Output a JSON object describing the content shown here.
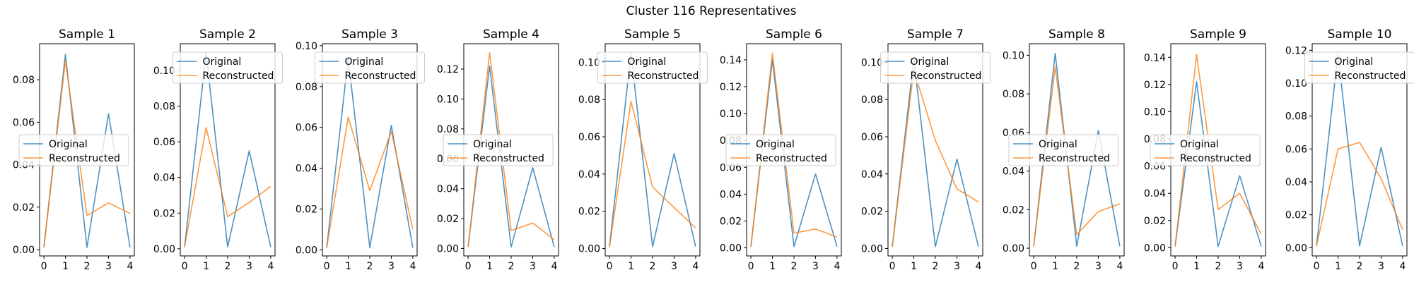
{
  "figure_title": "Cluster 116 Representatives",
  "colors": {
    "original": "#1f77b4",
    "reconstructed": "#ff7f0e"
  },
  "chart_data": [
    {
      "type": "line",
      "title": "Sample 1",
      "x": [
        0,
        1,
        2,
        3,
        4
      ],
      "series": [
        {
          "name": "Original",
          "values": [
            0.001,
            0.092,
            0.001,
            0.064,
            0.001
          ]
        },
        {
          "name": "Reconstructed",
          "values": [
            0.001,
            0.089,
            0.016,
            0.022,
            0.017
          ]
        }
      ],
      "ylim": [
        -0.003,
        0.097
      ],
      "yticks": [
        0.0,
        0.02,
        0.04,
        0.06,
        0.08
      ],
      "yticklabels": [
        "0.00",
        "0.02",
        "0.04",
        "0.06",
        "0.08"
      ],
      "xticks": [
        0,
        1,
        2,
        3,
        4
      ],
      "legend": "center-left"
    },
    {
      "type": "line",
      "title": "Sample 2",
      "x": [
        0,
        1,
        2,
        3,
        4
      ],
      "series": [
        {
          "name": "Original",
          "values": [
            0.001,
            0.11,
            0.001,
            0.055,
            0.001
          ]
        },
        {
          "name": "Reconstructed",
          "values": [
            0.001,
            0.068,
            0.018,
            0.026,
            0.035
          ]
        }
      ],
      "ylim": [
        -0.004,
        0.115
      ],
      "yticks": [
        0.0,
        0.02,
        0.04,
        0.06,
        0.08,
        0.1
      ],
      "yticklabels": [
        "0.00",
        "0.02",
        "0.04",
        "0.06",
        "0.08",
        "0.10"
      ],
      "xticks": [
        0,
        1,
        2,
        3,
        4
      ],
      "legend": "top"
    },
    {
      "type": "line",
      "title": "Sample 3",
      "x": [
        0,
        1,
        2,
        3,
        4
      ],
      "series": [
        {
          "name": "Original",
          "values": [
            0.001,
            0.094,
            0.001,
            0.061,
            0.001
          ]
        },
        {
          "name": "Reconstructed",
          "values": [
            0.001,
            0.065,
            0.029,
            0.058,
            0.01
          ]
        }
      ],
      "ylim": [
        -0.003,
        0.101
      ],
      "yticks": [
        0.0,
        0.02,
        0.04,
        0.06,
        0.08,
        0.1
      ],
      "yticklabels": [
        "0.00",
        "0.02",
        "0.04",
        "0.06",
        "0.08",
        "0.10"
      ],
      "xticks": [
        0,
        1,
        2,
        3,
        4
      ],
      "legend": "top"
    },
    {
      "type": "line",
      "title": "Sample 4",
      "x": [
        0,
        1,
        2,
        3,
        4
      ],
      "series": [
        {
          "name": "Original",
          "values": [
            0.001,
            0.122,
            0.001,
            0.054,
            0.001
          ]
        },
        {
          "name": "Reconstructed",
          "values": [
            0.001,
            0.131,
            0.012,
            0.017,
            0.006
          ]
        }
      ],
      "ylim": [
        -0.005,
        0.137
      ],
      "yticks": [
        0.0,
        0.02,
        0.04,
        0.06,
        0.08,
        0.1,
        0.12
      ],
      "yticklabels": [
        "0.00",
        "0.02",
        "0.04",
        "0.06",
        "0.08",
        "0.10",
        "0.12"
      ],
      "xticks": [
        0,
        1,
        2,
        3,
        4
      ],
      "legend": "center-left"
    },
    {
      "type": "line",
      "title": "Sample 5",
      "x": [
        0,
        1,
        2,
        3,
        4
      ],
      "series": [
        {
          "name": "Original",
          "values": [
            0.001,
            0.105,
            0.001,
            0.051,
            0.001
          ]
        },
        {
          "name": "Reconstructed",
          "values": [
            0.001,
            0.079,
            0.033,
            0.022,
            0.011
          ]
        }
      ],
      "ylim": [
        -0.004,
        0.11
      ],
      "yticks": [
        0.0,
        0.02,
        0.04,
        0.06,
        0.08,
        0.1
      ],
      "yticklabels": [
        "0.00",
        "0.02",
        "0.04",
        "0.06",
        "0.08",
        "0.10"
      ],
      "xticks": [
        0,
        1,
        2,
        3,
        4
      ],
      "legend": "top"
    },
    {
      "type": "line",
      "title": "Sample 6",
      "x": [
        0,
        1,
        2,
        3,
        4
      ],
      "series": [
        {
          "name": "Original",
          "values": [
            0.001,
            0.14,
            0.001,
            0.055,
            0.001
          ]
        },
        {
          "name": "Reconstructed",
          "values": [
            0.001,
            0.145,
            0.011,
            0.014,
            0.008
          ]
        }
      ],
      "ylim": [
        -0.006,
        0.152
      ],
      "yticks": [
        0.0,
        0.02,
        0.04,
        0.06,
        0.08,
        0.1,
        0.12,
        0.14
      ],
      "yticklabels": [
        "0.00",
        "0.02",
        "0.04",
        "0.06",
        "0.08",
        "0.10",
        "0.12",
        "0.14"
      ],
      "xticks": [
        0,
        1,
        2,
        3,
        4
      ],
      "legend": "center-left"
    },
    {
      "type": "line",
      "title": "Sample 7",
      "x": [
        0,
        1,
        2,
        3,
        4
      ],
      "series": [
        {
          "name": "Original",
          "values": [
            0.001,
            0.102,
            0.001,
            0.048,
            0.001
          ]
        },
        {
          "name": "Reconstructed",
          "values": [
            0.001,
            0.096,
            0.058,
            0.032,
            0.025
          ]
        }
      ],
      "ylim": [
        -0.004,
        0.11
      ],
      "yticks": [
        0.0,
        0.02,
        0.04,
        0.06,
        0.08,
        0.1
      ],
      "yticklabels": [
        "0.00",
        "0.02",
        "0.04",
        "0.06",
        "0.08",
        "0.10"
      ],
      "xticks": [
        0,
        1,
        2,
        3,
        4
      ],
      "legend": "top"
    },
    {
      "type": "line",
      "title": "Sample 8",
      "x": [
        0,
        1,
        2,
        3,
        4
      ],
      "series": [
        {
          "name": "Original",
          "values": [
            0.001,
            0.101,
            0.001,
            0.061,
            0.001
          ]
        },
        {
          "name": "Reconstructed",
          "values": [
            0.001,
            0.094,
            0.007,
            0.019,
            0.023
          ]
        }
      ],
      "ylim": [
        -0.004,
        0.106
      ],
      "yticks": [
        0.0,
        0.02,
        0.04,
        0.06,
        0.08,
        0.1
      ],
      "yticklabels": [
        "0.00",
        "0.02",
        "0.04",
        "0.06",
        "0.08",
        "0.10"
      ],
      "xticks": [
        0,
        1,
        2,
        3,
        4
      ],
      "legend": "center-left"
    },
    {
      "type": "line",
      "title": "Sample 9",
      "x": [
        0,
        1,
        2,
        3,
        4
      ],
      "series": [
        {
          "name": "Original",
          "values": [
            0.001,
            0.122,
            0.001,
            0.053,
            0.001
          ]
        },
        {
          "name": "Reconstructed",
          "values": [
            0.001,
            0.142,
            0.028,
            0.04,
            0.01
          ]
        }
      ],
      "ylim": [
        -0.006,
        0.15
      ],
      "yticks": [
        0.0,
        0.02,
        0.04,
        0.06,
        0.08,
        0.1,
        0.12,
        0.14
      ],
      "yticklabels": [
        "0.00",
        "0.02",
        "0.04",
        "0.06",
        "0.08",
        "0.10",
        "0.12",
        "0.14"
      ],
      "xticks": [
        0,
        1,
        2,
        3,
        4
      ],
      "legend": "center-left"
    },
    {
      "type": "line",
      "title": "Sample 10",
      "x": [
        0,
        1,
        2,
        3,
        4
      ],
      "series": [
        {
          "name": "Original",
          "values": [
            0.001,
            0.118,
            0.001,
            0.061,
            0.001
          ]
        },
        {
          "name": "Reconstructed",
          "values": [
            0.001,
            0.06,
            0.064,
            0.042,
            0.011
          ]
        }
      ],
      "ylim": [
        -0.005,
        0.124
      ],
      "yticks": [
        0.0,
        0.02,
        0.04,
        0.06,
        0.08,
        0.1,
        0.12
      ],
      "yticklabels": [
        "0.00",
        "0.02",
        "0.04",
        "0.06",
        "0.08",
        "0.10",
        "0.12"
      ],
      "xticks": [
        0,
        1,
        2,
        3,
        4
      ],
      "legend": "top"
    }
  ]
}
